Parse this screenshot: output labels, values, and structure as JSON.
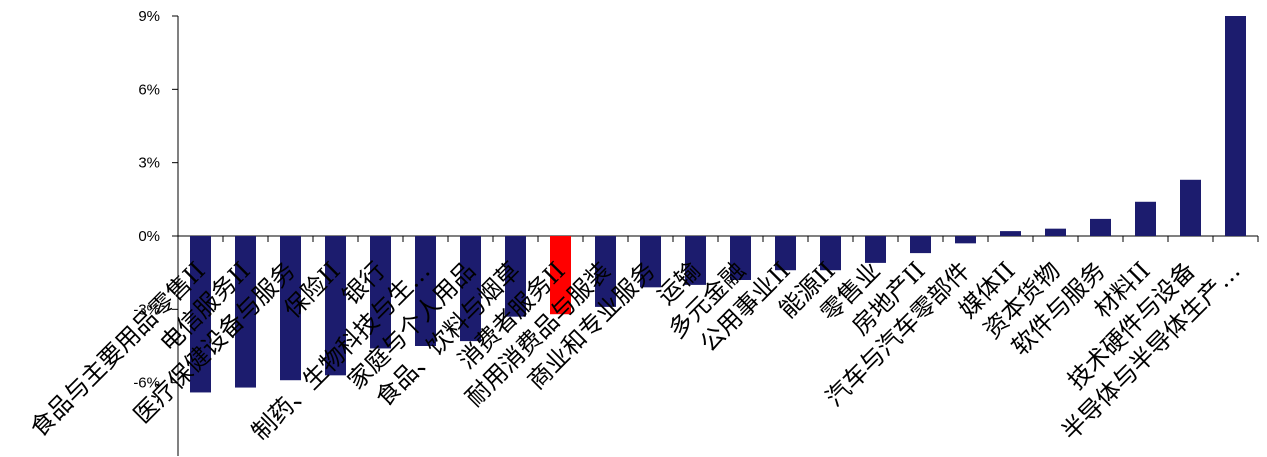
{
  "chart_data": {
    "type": "bar",
    "categories": [
      "食品与主要用品零售II",
      "电信服务II",
      "医疗保健设备与服务",
      "保险II",
      "银行",
      "制药、生物科技与生…",
      "家庭与个人用品",
      "食品、饮料与烟草",
      "消费者服务II",
      "耐用消费品与服装",
      "商业和专业服务",
      "运输",
      "多元金融",
      "公用事业II",
      "能源II",
      "零售业",
      "房地产II",
      "汽车与汽车零部件",
      "媒体II",
      "资本货物",
      "软件与服务",
      "材料II",
      "技术硬件与设备",
      "半导体与半导体生产…"
    ],
    "values": [
      -6.4,
      -6.2,
      -5.9,
      -5.7,
      -4.6,
      -4.5,
      -4.3,
      -3.3,
      -3.2,
      -2.9,
      -2.1,
      -2.0,
      -1.8,
      -1.4,
      -1.4,
      -1.1,
      -0.7,
      -0.3,
      0.2,
      0.3,
      0.7,
      1.4,
      2.3,
      9.0
    ],
    "unit": "%",
    "ylim": [
      -9,
      9
    ],
    "yticks": [
      9,
      6,
      3,
      0,
      -3,
      -6
    ],
    "ytick_labels": [
      "9%",
      "6%",
      "3%",
      "0%",
      "-3%",
      "-6%"
    ],
    "bar_color": "#1C1C6E",
    "highlight": {
      "category": "消费者服务II",
      "color": "#FF0000"
    },
    "axis_color": "#000000",
    "grid": false,
    "legend": "none"
  }
}
